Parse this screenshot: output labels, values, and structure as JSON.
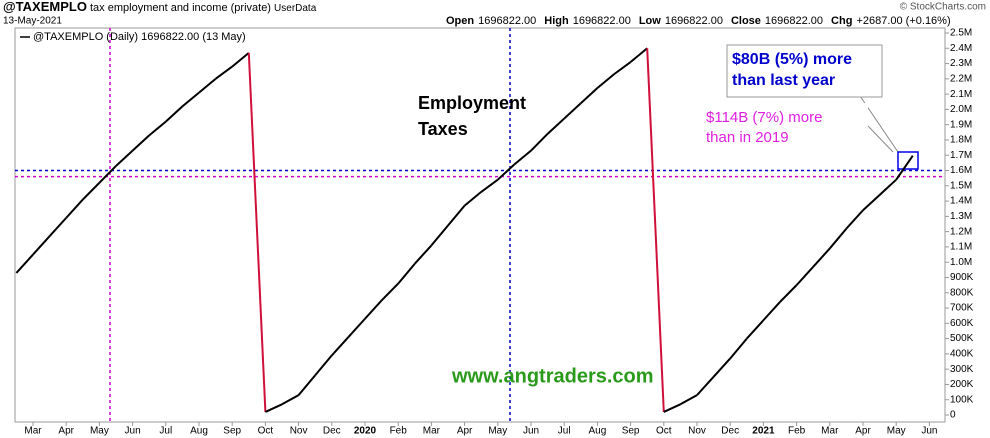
{
  "header": {
    "symbol": "@TAXEMPLO",
    "description": "tax employment and income (private)",
    "source": "UserData",
    "date": "13-May-2021",
    "credit": "© StockCharts.com",
    "ohlc": [
      {
        "label": "Open",
        "value": "1696822.00"
      },
      {
        "label": "High",
        "value": "1696822.00"
      },
      {
        "label": "Low",
        "value": "1696822.00"
      },
      {
        "label": "Close",
        "value": "1696822.00"
      },
      {
        "label": "Chg",
        "value": "+2687.00 (+0.16%)"
      }
    ]
  },
  "chart_data": {
    "type": "line",
    "categories": [
      null,
      "Mar",
      null,
      "Apr",
      null,
      "May",
      null,
      "Jun",
      null,
      "Jul",
      null,
      "Aug",
      null,
      "Sep",
      null,
      "Oct",
      null,
      "Nov",
      null,
      "Dec",
      null,
      "2020",
      null,
      "Feb",
      null,
      "Mar",
      null,
      "Apr",
      null,
      "May",
      null,
      "Jun",
      null,
      "Jul",
      null,
      "Aug",
      null,
      "Sep",
      null,
      "Oct",
      null,
      "Nov",
      null,
      "Dec",
      null,
      "2021",
      null,
      "Feb",
      null,
      "Mar",
      null,
      "Apr",
      null,
      "May",
      null,
      "Jun"
    ],
    "series": [
      {
        "name": "@TAXEMPLO (Daily) 1696822.00 (13 May)",
        "color": "#000000",
        "drop_color": "#d0103a",
        "values": [
          930000,
          1050000,
          1170000,
          1290000,
          1410000,
          1520000,
          1630000,
          1730000,
          1830000,
          1920000,
          2020000,
          2110000,
          2200000,
          2280000,
          2370000,
          20000,
          70000,
          130000,
          260000,
          390000,
          510000,
          630000,
          750000,
          860000,
          990000,
          1110000,
          1240000,
          1370000,
          1460000,
          1540000,
          1640000,
          1730000,
          1840000,
          1940000,
          2040000,
          2140000,
          2230000,
          2310000,
          2400000,
          20000,
          70000,
          130000,
          250000,
          370000,
          500000,
          620000,
          740000,
          850000,
          970000,
          1090000,
          1220000,
          1340000,
          1440000,
          1540000,
          1696822,
          null
        ]
      }
    ],
    "ylim": [
      0,
      2500000
    ],
    "yticks": [
      0,
      {
        "value": 100000,
        "label": "100K"
      },
      {
        "value": 200000,
        "label": "200K"
      },
      {
        "value": 300000,
        "label": "300K"
      },
      {
        "value": 400000,
        "label": "400K"
      },
      {
        "value": 500000,
        "label": "500K"
      },
      {
        "value": 600000,
        "label": "600K"
      },
      {
        "value": 700000,
        "label": "700K"
      },
      {
        "value": 800000,
        "label": "800K"
      },
      {
        "value": 900000,
        "label": "900K"
      },
      {
        "value": 1000000,
        "label": "1.0M"
      },
      {
        "value": 1100000,
        "label": "1.1M"
      },
      {
        "value": 1200000,
        "label": "1.2M"
      },
      {
        "value": 1300000,
        "label": "1.3M"
      },
      {
        "value": 1400000,
        "label": "1.4M"
      },
      {
        "value": 1500000,
        "label": "1.5M"
      },
      {
        "value": 1600000,
        "label": "1.6M"
      },
      {
        "value": 1700000,
        "label": "1.7M"
      },
      {
        "value": 1800000,
        "label": "1.8M"
      },
      {
        "value": 1900000,
        "label": "1.9M"
      },
      {
        "value": 2000000,
        "label": "2.0M"
      },
      {
        "value": 2100000,
        "label": "2.1M"
      },
      {
        "value": 2200000,
        "label": "2.2M"
      },
      {
        "value": 2300000,
        "label": "2.3M"
      },
      {
        "value": 2400000,
        "label": "2.4M"
      },
      {
        "value": 2500000,
        "label": "2.5M"
      }
    ],
    "grid": false,
    "reference_lines": [
      {
        "value": 1600000,
        "color": "#0000cc"
      },
      {
        "value": 1560000,
        "color": "#cc00cc"
      }
    ],
    "annotations": {
      "title_line1": "Employment",
      "title_line2": "Taxes",
      "vs_last_year_line1": "$80B (5%) more",
      "vs_last_year_line2": "than last year",
      "vs_2019_line1": "$114B (7%) more",
      "vs_2019_line2": "than in 2019",
      "website": "www.angtraders.com"
    }
  }
}
